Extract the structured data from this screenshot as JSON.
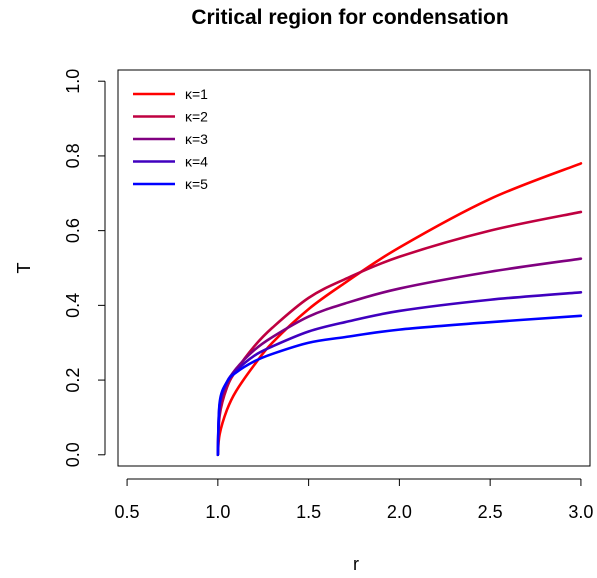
{
  "chart_data": {
    "type": "line",
    "title": "Critical region for condensation",
    "xlabel": "r",
    "ylabel": "T",
    "xlim": [
      0.45,
      3.05
    ],
    "ylim": [
      -0.03,
      1.03
    ],
    "x_ticks": [
      0.5,
      1.0,
      1.5,
      2.0,
      2.5,
      3.0
    ],
    "x_tick_labels": [
      "0.5",
      "1.0",
      "1.5",
      "2.0",
      "2.5",
      "3.0"
    ],
    "y_ticks": [
      0.0,
      0.2,
      0.4,
      0.6,
      0.8,
      1.0
    ],
    "y_tick_labels": [
      "0.0",
      "0.2",
      "0.4",
      "0.6",
      "0.8",
      "1.0"
    ],
    "legend_position": "top-left",
    "series": [
      {
        "name": "κ=1",
        "color": "#ff0000",
        "x": [
          1.0,
          1.01,
          1.05,
          1.1,
          1.2,
          1.3,
          1.5,
          1.7,
          2.0,
          2.5,
          3.0
        ],
        "y": [
          0.0,
          0.055,
          0.12,
          0.17,
          0.24,
          0.3,
          0.39,
          0.46,
          0.555,
          0.685,
          0.78
        ]
      },
      {
        "name": "κ=2",
        "color": "#bf0040",
        "x": [
          1.0,
          1.01,
          1.05,
          1.1,
          1.2,
          1.3,
          1.5,
          1.7,
          2.0,
          2.5,
          3.0
        ],
        "y": [
          0.0,
          0.105,
          0.18,
          0.225,
          0.29,
          0.34,
          0.42,
          0.47,
          0.53,
          0.6,
          0.65
        ]
      },
      {
        "name": "κ=3",
        "color": "#800080",
        "x": [
          1.0,
          1.01,
          1.05,
          1.1,
          1.2,
          1.3,
          1.5,
          1.7,
          2.0,
          2.5,
          3.0
        ],
        "y": [
          0.0,
          0.125,
          0.19,
          0.23,
          0.28,
          0.315,
          0.37,
          0.405,
          0.445,
          0.49,
          0.525
        ]
      },
      {
        "name": "κ=4",
        "color": "#4000bf",
        "x": [
          1.0,
          1.01,
          1.05,
          1.1,
          1.2,
          1.3,
          1.5,
          1.7,
          2.0,
          2.5,
          3.0
        ],
        "y": [
          0.0,
          0.135,
          0.195,
          0.225,
          0.265,
          0.29,
          0.33,
          0.355,
          0.385,
          0.415,
          0.435
        ]
      },
      {
        "name": "κ=5",
        "color": "#0000ff",
        "x": [
          1.0,
          1.01,
          1.05,
          1.1,
          1.2,
          1.3,
          1.5,
          1.7,
          2.0,
          2.5,
          3.0
        ],
        "y": [
          0.0,
          0.14,
          0.195,
          0.22,
          0.25,
          0.27,
          0.3,
          0.315,
          0.335,
          0.355,
          0.372
        ]
      }
    ]
  }
}
